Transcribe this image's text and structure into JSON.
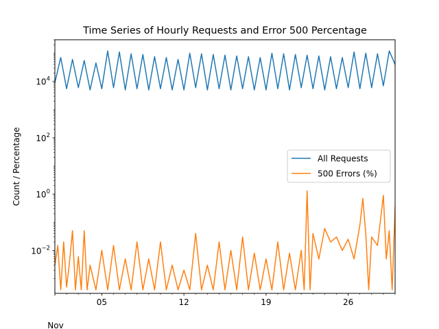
{
  "chart_data": {
    "type": "line",
    "title": "Time Series of Hourly Requests and Error 500 Percentage",
    "ylabel": "Count / Percentage",
    "xlabel": "",
    "y_scale": "log",
    "ylim": [
      0.0003,
      300000
    ],
    "xlim": [
      "2023-11-01",
      "2023-11-30"
    ],
    "x_month_label": "Nov",
    "x_ticks": [
      {
        "date": "2023-11-05",
        "label": "05"
      },
      {
        "date": "2023-11-12",
        "label": "12"
      },
      {
        "date": "2023-11-19",
        "label": "19"
      },
      {
        "date": "2023-11-26",
        "label": "26"
      }
    ],
    "y_ticks": [
      {
        "value": 0.01,
        "base": "10",
        "exp": "−2"
      },
      {
        "value": 1,
        "base": "10",
        "exp": "0"
      },
      {
        "value": 100,
        "base": "10",
        "exp": "2"
      },
      {
        "value": 10000,
        "base": "10",
        "exp": "4"
      }
    ],
    "grid": false,
    "legend_position": "center-right",
    "series": [
      {
        "name": "All Requests",
        "color": "#1f77b4",
        "x": [
          "2023-11-01",
          "2023-11-01 12:00",
          "2023-11-02",
          "2023-11-02 12:00",
          "2023-11-03",
          "2023-11-03 12:00",
          "2023-11-04",
          "2023-11-04 12:00",
          "2023-11-05",
          "2023-11-05 12:00",
          "2023-11-06",
          "2023-11-06 12:00",
          "2023-11-07",
          "2023-11-07 12:00",
          "2023-11-08",
          "2023-11-08 12:00",
          "2023-11-09",
          "2023-11-09 12:00",
          "2023-11-10",
          "2023-11-10 12:00",
          "2023-11-11",
          "2023-11-11 12:00",
          "2023-11-12",
          "2023-11-12 12:00",
          "2023-11-13",
          "2023-11-13 12:00",
          "2023-11-14",
          "2023-11-14 12:00",
          "2023-11-15",
          "2023-11-15 12:00",
          "2023-11-16",
          "2023-11-16 12:00",
          "2023-11-17",
          "2023-11-17 12:00",
          "2023-11-18",
          "2023-11-18 12:00",
          "2023-11-19",
          "2023-11-19 12:00",
          "2023-11-20",
          "2023-11-20 12:00",
          "2023-11-21",
          "2023-11-21 12:00",
          "2023-11-22",
          "2023-11-22 12:00",
          "2023-11-23",
          "2023-11-23 12:00",
          "2023-11-24",
          "2023-11-24 12:00",
          "2023-11-25",
          "2023-11-25 12:00",
          "2023-11-26",
          "2023-11-26 12:00",
          "2023-11-27",
          "2023-11-27 12:00",
          "2023-11-28",
          "2023-11-28 12:00",
          "2023-11-29",
          "2023-11-29 12:00",
          "2023-11-30"
        ],
        "y": [
          9000,
          70000,
          5500,
          60000,
          6000,
          55000,
          5000,
          45000,
          5500,
          120000,
          6000,
          110000,
          5000,
          95000,
          5500,
          90000,
          5000,
          75000,
          5500,
          70000,
          5000,
          60000,
          5000,
          100000,
          6000,
          95000,
          5000,
          90000,
          5500,
          85000,
          5000,
          80000,
          5500,
          75000,
          5000,
          70000,
          5000,
          100000,
          5500,
          95000,
          5000,
          90000,
          6000,
          85000,
          5500,
          80000,
          5000,
          75000,
          5500,
          70000,
          6000,
          110000,
          5500,
          100000,
          6000,
          95000,
          7000,
          120000,
          40000
        ]
      },
      {
        "name": "500 Errors (%)",
        "color": "#ff7f0e",
        "x": [
          "2023-11-01",
          "2023-11-01 06:00",
          "2023-11-01 12:00",
          "2023-11-01 18:00",
          "2023-11-02",
          "2023-11-02 06:00",
          "2023-11-02 12:00",
          "2023-11-02 18:00",
          "2023-11-03",
          "2023-11-03 06:00",
          "2023-11-03 12:00",
          "2023-11-03 18:00",
          "2023-11-04",
          "2023-11-04 12:00",
          "2023-11-05",
          "2023-11-05 12:00",
          "2023-11-06",
          "2023-11-06 12:00",
          "2023-11-07",
          "2023-11-07 12:00",
          "2023-11-08",
          "2023-11-08 12:00",
          "2023-11-09",
          "2023-11-09 12:00",
          "2023-11-10",
          "2023-11-10 12:00",
          "2023-11-11",
          "2023-11-11 12:00",
          "2023-11-12",
          "2023-11-12 12:00",
          "2023-11-13",
          "2023-11-13 12:00",
          "2023-11-14",
          "2023-11-14 12:00",
          "2023-11-15",
          "2023-11-15 12:00",
          "2023-11-16",
          "2023-11-16 12:00",
          "2023-11-17",
          "2023-11-17 12:00",
          "2023-11-18",
          "2023-11-18 12:00",
          "2023-11-19",
          "2023-11-19 12:00",
          "2023-11-20",
          "2023-11-20 12:00",
          "2023-11-21",
          "2023-11-21 12:00",
          "2023-11-22",
          "2023-11-22 06:00",
          "2023-11-22 12:00",
          "2023-11-22 18:00",
          "2023-11-23",
          "2023-11-23 12:00",
          "2023-11-24",
          "2023-11-24 12:00",
          "2023-11-25",
          "2023-11-25 12:00",
          "2023-11-26",
          "2023-11-26 12:00",
          "2023-11-27",
          "2023-11-27 06:00",
          "2023-11-27 12:00",
          "2023-11-27 18:00",
          "2023-11-28",
          "2023-11-28 12:00",
          "2023-11-29",
          "2023-11-29 06:00",
          "2023-11-29 12:00",
          "2023-11-29 18:00",
          "2023-11-30"
        ],
        "y": [
          0.003,
          0.015,
          0.0004,
          0.02,
          0.0005,
          0.004,
          0.05,
          0.0004,
          0.006,
          0.0004,
          0.05,
          0.0004,
          0.003,
          0.0004,
          0.01,
          0.0004,
          0.015,
          0.0004,
          0.005,
          0.0004,
          0.02,
          0.0004,
          0.005,
          0.0004,
          0.02,
          0.0004,
          0.003,
          0.0004,
          0.002,
          0.0004,
          0.04,
          0.0004,
          0.003,
          0.0004,
          0.02,
          0.0004,
          0.01,
          0.0004,
          0.03,
          0.0004,
          0.008,
          0.0004,
          0.005,
          0.0004,
          0.02,
          0.0004,
          0.008,
          0.0004,
          0.01,
          0.0004,
          1.3,
          0.0004,
          0.04,
          0.005,
          0.06,
          0.02,
          0.03,
          0.01,
          0.025,
          0.005,
          0.08,
          0.7,
          0.04,
          0.0004,
          0.03,
          0.015,
          0.9,
          0.005,
          0.05,
          0.0004,
          0.35
        ]
      }
    ]
  }
}
